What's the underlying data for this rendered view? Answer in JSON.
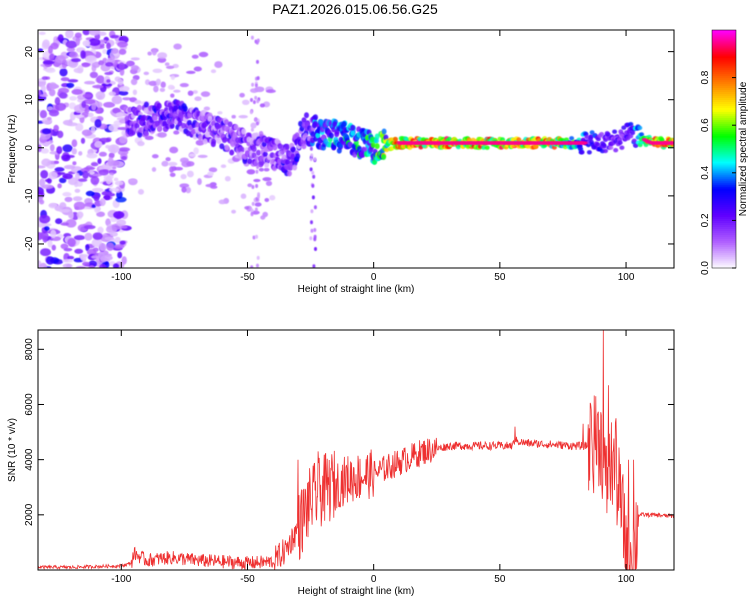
{
  "figure": {
    "title": "PAZ1.2026.015.06.56.G25"
  },
  "chart_data": [
    {
      "type": "heatmap",
      "title": "PAZ1.2026.015.06.56.G25",
      "xlabel": "Height of straight line (km)",
      "ylabel": "Frequency (Hz)",
      "xlim": [
        -133,
        119
      ],
      "ylim": [
        -25,
        24.5
      ],
      "xticks": [
        -100,
        -50,
        0,
        50,
        100
      ],
      "yticks": [
        -20,
        -10,
        0,
        10,
        20
      ],
      "colorbar": {
        "label": "Normalized spectral amplitude",
        "range": [
          0,
          1
        ],
        "ticks": [
          0.0,
          0.2,
          0.4,
          0.6,
          0.8
        ],
        "tick_labels": [
          "0.0",
          "0.2",
          "0.4",
          "0.6",
          "0.8"
        ],
        "colormap": [
          "#ffffff",
          "#b060ff",
          "#6000ff",
          "#0000ff",
          "#00ffff",
          "#00ff00",
          "#ffff00",
          "#ff8000",
          "#ff0000",
          "#ff00ff"
        ]
      },
      "ridge": {
        "x": [
          -98,
          -90,
          -80,
          -70,
          -60,
          -50,
          -40,
          -33,
          -27,
          -20,
          -10,
          0,
          10,
          30,
          50,
          70,
          85,
          92,
          98,
          102,
          110,
          119
        ],
        "y": [
          5,
          6,
          7,
          5,
          3,
          0,
          -1,
          -3,
          4,
          3,
          2,
          0,
          1,
          1,
          1,
          1,
          1,
          1,
          2,
          3,
          1,
          1
        ],
        "peak_amplitude": [
          0.3,
          0.35,
          0.35,
          0.3,
          0.3,
          0.3,
          0.3,
          0.35,
          0.4,
          0.5,
          0.55,
          0.6,
          0.95,
          0.95,
          0.95,
          0.9,
          0.4,
          0.35,
          0.3,
          0.35,
          0.95,
          0.95
        ]
      }
    },
    {
      "type": "line",
      "xlabel": "Height of straight line (km)",
      "ylabel": "SNR (10 * v/v)",
      "xlim": [
        -133,
        119
      ],
      "ylim": [
        0,
        8700
      ],
      "xticks": [
        -100,
        -50,
        0,
        50,
        100
      ],
      "yticks": [
        2000,
        4000,
        6000,
        8000
      ],
      "color": "#ee3030",
      "envelope": {
        "x": [
          -133,
          -120,
          -100,
          -96,
          -95,
          -90,
          -80,
          -70,
          -60,
          -50,
          -40,
          -35,
          -30,
          -25,
          -20,
          -10,
          0,
          10,
          20,
          30,
          40,
          50,
          55,
          56,
          60,
          70,
          80,
          85,
          88,
          90,
          92,
          93,
          95,
          98,
          100,
          103,
          105,
          110,
          119
        ],
        "y": [
          100,
          100,
          150,
          250,
          600,
          350,
          450,
          350,
          300,
          250,
          300,
          700,
          1500,
          2500,
          2900,
          3300,
          3500,
          3900,
          4300,
          4500,
          4500,
          4500,
          4500,
          4700,
          4600,
          4550,
          4500,
          4500,
          4600,
          4800,
          3000,
          3500,
          4000,
          2300,
          1000,
          600,
          2000,
          2000,
          1950
        ]
      },
      "spikes": [
        {
          "x": -30,
          "y": 4000
        },
        {
          "x": -22,
          "y": 4300
        },
        {
          "x": -17,
          "y": 3700
        },
        {
          "x": 56,
          "y": 5200
        },
        {
          "x": 83,
          "y": 5300
        },
        {
          "x": 86,
          "y": 6000
        },
        {
          "x": 88,
          "y": 6300
        },
        {
          "x": 91,
          "y": 8700
        },
        {
          "x": 93,
          "y": 6700
        },
        {
          "x": 96,
          "y": 5500
        },
        {
          "x": 101,
          "y": 4000
        },
        {
          "x": 103,
          "y": 4000
        }
      ]
    }
  ]
}
